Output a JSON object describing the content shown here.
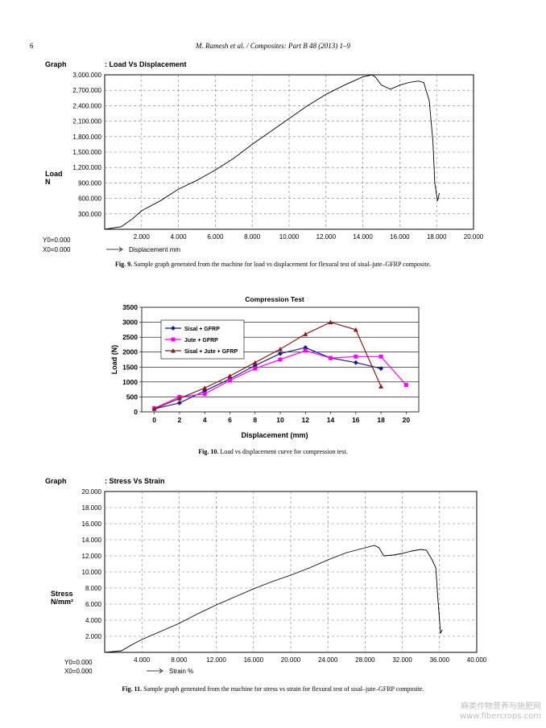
{
  "header": {
    "page_number": "6",
    "running_title": "M. Ramesh et al. / Composites: Part B 48 (2013) 1–9"
  },
  "figures": [
    {
      "number_label": "Fig. 9.",
      "caption": "Sample graph generated from the machine for load vs displacement for flexural test of sisal–jute–GFRP composite.",
      "chart_data": {
        "type": "line",
        "graph_label": "Graph",
        "title": ": Load Vs Displacement",
        "ylabel": "Load\nN",
        "xlabel": "Displacement mm",
        "origin_labels": [
          "Y0=0.000",
          "X0=0.000"
        ],
        "x_ticks": [
          "2.000",
          "4.000",
          "6.000",
          "8.000",
          "10.000",
          "12.000",
          "14.000",
          "16.000",
          "18.000",
          "20.000"
        ],
        "y_ticks": [
          "300.000",
          "600.000",
          "900.000",
          "1,200.000",
          "1,500.000",
          "1,800.000",
          "2,100.000",
          "2,400.000",
          "2,700.000",
          "3,000.000"
        ],
        "xlim": [
          0,
          20
        ],
        "ylim": [
          0,
          3000
        ],
        "grid": true,
        "x": [
          0,
          0.9,
          1.5,
          2.0,
          3.0,
          4.0,
          5.0,
          6.0,
          7.0,
          8.0,
          9.0,
          10.0,
          11.0,
          12.0,
          13.0,
          14.0,
          14.5,
          14.7,
          15.0,
          15.5,
          16.0,
          16.5,
          17.0,
          17.3,
          17.6,
          17.8,
          17.9,
          18.05,
          18.15
        ],
        "y": [
          0,
          50,
          200,
          360,
          550,
          780,
          950,
          1150,
          1380,
          1650,
          1900,
          2150,
          2400,
          2620,
          2800,
          2960,
          3000,
          2950,
          2800,
          2720,
          2800,
          2850,
          2880,
          2850,
          2500,
          1700,
          900,
          550,
          700
        ]
      }
    },
    {
      "number_label": "Fig. 10.",
      "caption": "Load vs displacement curve for compression test.",
      "chart_data": {
        "type": "line",
        "title": "Compression Test",
        "xlabel": "Displacement (mm)",
        "ylabel": "Load (N)",
        "xlim": [
          -1,
          21
        ],
        "ylim": [
          0,
          3500
        ],
        "x_ticks": [
          "0",
          "2",
          "4",
          "6",
          "8",
          "10",
          "12",
          "14",
          "16",
          "18",
          "20"
        ],
        "y_ticks": [
          "0",
          "500",
          "1000",
          "1500",
          "2000",
          "2500",
          "3000",
          "3500"
        ],
        "legend_position": "top-left",
        "grid": true,
        "series": [
          {
            "name": "Sisal + GFRP",
            "color": "#1a1a8c",
            "marker": "diamond",
            "x": [
              0,
              2,
              4,
              6,
              8,
              10,
              12,
              14,
              16,
              18
            ],
            "y": [
              100,
              300,
              700,
              1100,
              1550,
              1950,
              2150,
              1800,
              1650,
              1450
            ]
          },
          {
            "name": "Jute + GFRP",
            "color": "#ff00ff",
            "marker": "square",
            "x": [
              0,
              2,
              4,
              6,
              8,
              10,
              12,
              14,
              16,
              18,
              20
            ],
            "y": [
              120,
              500,
              600,
              1050,
              1450,
              1750,
              2050,
              1800,
              1850,
              1850,
              900
            ]
          },
          {
            "name": "Sisal + Jute + GFRP",
            "color": "#8b1a1a",
            "marker": "triangle",
            "x": [
              0,
              2,
              4,
              6,
              8,
              10,
              12,
              14,
              16,
              18
            ],
            "y": [
              100,
              450,
              800,
              1200,
              1650,
              2100,
              2600,
              3000,
              2750,
              850
            ]
          }
        ]
      }
    },
    {
      "number_label": "Fig. 11.",
      "caption": "Sample graph generated from the machine for stress vs strain for flexural test of sisal–jute–GFRP composite.",
      "chart_data": {
        "type": "line",
        "graph_label": "Graph",
        "title": ": Stress Vs Strain",
        "ylabel": "Stress\nN/mm²",
        "xlabel": "Strain %",
        "origin_labels": [
          "Y0=0.000",
          "X0=0.000"
        ],
        "x_ticks": [
          "4.000",
          "8.000",
          "12.000",
          "16.000",
          "20.000",
          "24.000",
          "28.000",
          "32.000",
          "36.000",
          "40.000"
        ],
        "y_ticks": [
          "2.000",
          "4.000",
          "6.000",
          "8.000",
          "10.000",
          "12.000",
          "14.000",
          "16.000",
          "18.000",
          "20.000"
        ],
        "xlim": [
          0,
          40
        ],
        "ylim": [
          0,
          20
        ],
        "grid": true,
        "x": [
          0,
          1.8,
          3.0,
          4.0,
          6.0,
          8.0,
          10.0,
          12.0,
          14.0,
          16.0,
          18.0,
          20.0,
          22.0,
          24.0,
          26.0,
          28.0,
          29.0,
          29.5,
          30.0,
          31.0,
          32.0,
          33.0,
          34.0,
          34.6,
          35.2,
          35.6,
          35.8,
          36.1,
          36.3
        ],
        "y": [
          0,
          0.2,
          1.0,
          1.6,
          2.6,
          3.6,
          4.8,
          5.9,
          6.9,
          7.9,
          8.8,
          9.6,
          10.5,
          11.5,
          12.4,
          13.0,
          13.3,
          13.0,
          12.0,
          12.1,
          12.3,
          12.6,
          12.8,
          12.7,
          11.5,
          10.5,
          7.0,
          2.4,
          2.8
        ]
      }
    }
  ],
  "watermark": {
    "line1": "麻类作物营养与施肥网",
    "line2": "www.fibercrops.com"
  }
}
